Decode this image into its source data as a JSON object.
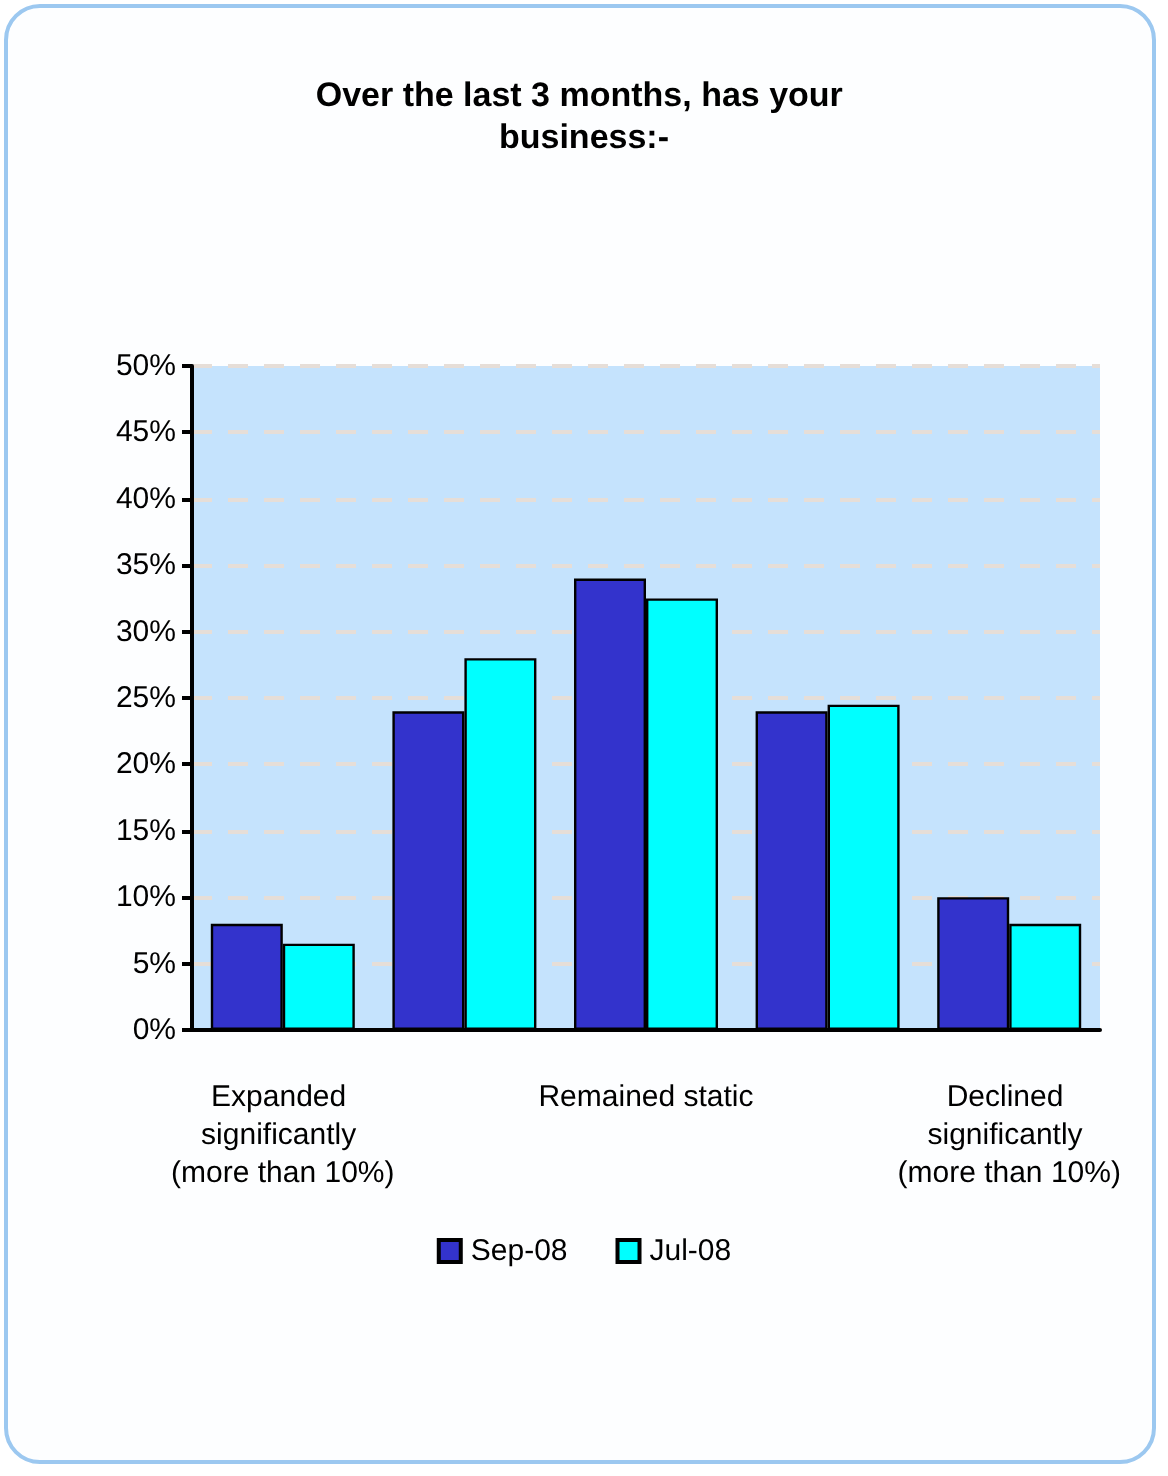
{
  "chart_data": {
    "type": "bar",
    "title": "Over the last 3 months, has your business:-",
    "categories": [
      "Expanded significantly (more than 10%)",
      null,
      "Remained static",
      null,
      "Declined significantly (more than 10%)"
    ],
    "series": [
      {
        "name": "Sep-08",
        "color": "#3333cc",
        "values": [
          8,
          24,
          34,
          24,
          10
        ]
      },
      {
        "name": "Jul-08",
        "color": "#00ffff",
        "values": [
          6.5,
          28,
          32.5,
          24.5,
          8
        ]
      }
    ],
    "ylim": [
      0,
      50
    ],
    "yticks": [
      {
        "value": 0,
        "label": "0%"
      },
      {
        "value": 5,
        "label": "5%"
      },
      {
        "value": 10,
        "label": "10%"
      },
      {
        "value": 15,
        "label": "15%"
      },
      {
        "value": 20,
        "label": "20%"
      },
      {
        "value": 25,
        "label": "25%"
      },
      {
        "value": 30,
        "label": "30%"
      },
      {
        "value": 35,
        "label": "35%"
      },
      {
        "value": 40,
        "label": "40%"
      },
      {
        "value": 45,
        "label": "45%"
      },
      {
        "value": 50,
        "label": "50%"
      }
    ],
    "grid": "y",
    "legend": "bottom"
  }
}
